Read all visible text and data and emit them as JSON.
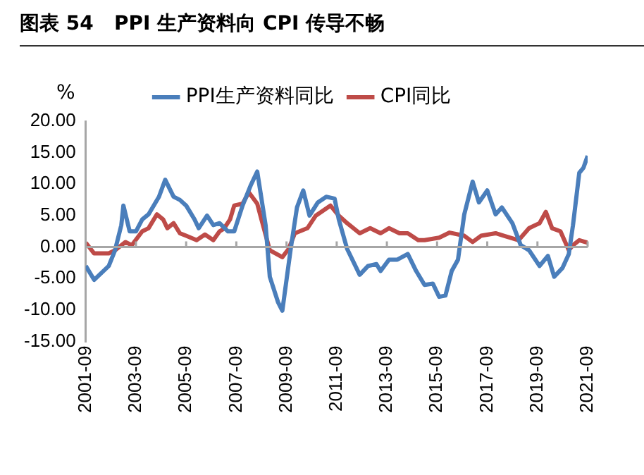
{
  "chart_data": {
    "type": "line",
    "title": "图表 54   PPI 生产资料向 CPI 传导不畅",
    "ylabel": "%",
    "xlim": [
      "2001-09",
      "2021-09"
    ],
    "xticks": [
      "2001-09",
      "2003-09",
      "2005-09",
      "2007-09",
      "2009-09",
      "2011-09",
      "2013-09",
      "2015-09",
      "2017-09",
      "2019-09",
      "2021-09"
    ],
    "ylim": [
      -15,
      20
    ],
    "yticks": [
      {
        "value": -15,
        "label": "-15.00"
      },
      {
        "value": -10,
        "label": "-10.00"
      },
      {
        "value": -5,
        "label": "-5.00"
      },
      {
        "value": 0,
        "label": "0.00"
      },
      {
        "value": 5,
        "label": "5.00"
      },
      {
        "value": 10,
        "label": "10.00"
      },
      {
        "value": 15,
        "label": "15.00"
      },
      {
        "value": 20,
        "label": "20.00"
      }
    ],
    "ref_lines": [
      {
        "axis": "y",
        "value": 0,
        "color": "#a6a6a6"
      }
    ],
    "grid": false,
    "legend": "top",
    "marker": "none",
    "line_style": "solid",
    "series": [
      {
        "name": "PPI生产资料同比",
        "color": "#4a7ebb",
        "x": [
          "2001-09",
          "2002-01",
          "2002-08",
          "2002-11",
          "2003-02",
          "2003-03",
          "2003-06",
          "2003-09",
          "2003-12",
          "2004-03",
          "2004-08",
          "2004-11",
          "2005-03",
          "2005-06",
          "2005-09",
          "2006-01",
          "2006-03",
          "2006-07",
          "2006-10",
          "2007-01",
          "2007-05",
          "2007-08",
          "2007-12",
          "2008-04",
          "2008-07",
          "2008-11",
          "2009-01",
          "2009-05",
          "2009-07",
          "2009-11",
          "2010-02",
          "2010-05",
          "2010-08",
          "2010-12",
          "2011-04",
          "2011-08",
          "2011-10",
          "2012-02",
          "2012-08",
          "2012-12",
          "2013-04",
          "2013-06",
          "2013-10",
          "2014-02",
          "2014-07",
          "2014-11",
          "2015-03",
          "2015-07",
          "2015-10",
          "2016-01",
          "2016-04",
          "2016-07",
          "2016-10",
          "2017-02",
          "2017-05",
          "2017-09",
          "2018-01",
          "2018-04",
          "2018-09",
          "2019-01",
          "2019-05",
          "2019-10",
          "2020-02",
          "2020-05",
          "2020-09",
          "2020-12",
          "2021-02",
          "2021-05",
          "2021-07",
          "2021-09"
        ],
        "values": [
          -3,
          -5.2,
          -3,
          -0.5,
          3.5,
          6.6,
          2.5,
          2.5,
          4.4,
          5.2,
          8,
          10.7,
          8,
          7.5,
          6.6,
          4.4,
          3,
          5,
          3.5,
          3.8,
          2.5,
          2.5,
          6.6,
          9.9,
          12,
          3.5,
          -4.7,
          -8.8,
          -10.1,
          -0.3,
          6.3,
          9,
          5,
          7.1,
          8,
          7.7,
          4.4,
          -0.3,
          -4.4,
          -3,
          -2.7,
          -3.8,
          -2,
          -2,
          -1.1,
          -3.8,
          -6,
          -5.8,
          -7.9,
          -7.7,
          -3.8,
          -2,
          5.2,
          10.4,
          7.1,
          9,
          5.2,
          6.3,
          3.8,
          0.3,
          -0.5,
          -3,
          -1.4,
          -4.7,
          -3.3,
          -1.1,
          3.5,
          11.8,
          12.6,
          14.5
        ]
      },
      {
        "name": "CPI同比",
        "color": "#be4b48",
        "x": [
          "2001-09",
          "2002-01",
          "2002-08",
          "2002-11",
          "2003-04",
          "2003-07",
          "2003-12",
          "2004-03",
          "2004-07",
          "2004-10",
          "2004-12",
          "2005-03",
          "2005-06",
          "2005-09",
          "2006-02",
          "2006-06",
          "2006-10",
          "2007-01",
          "2007-03",
          "2007-06",
          "2007-08",
          "2007-12",
          "2008-03",
          "2008-07",
          "2008-09",
          "2009-01",
          "2009-07",
          "2009-10",
          "2010-01",
          "2010-07",
          "2010-11",
          "2011-06",
          "2011-10",
          "2012-02",
          "2012-08",
          "2013-01",
          "2013-06",
          "2013-10",
          "2014-03",
          "2014-07",
          "2014-12",
          "2015-03",
          "2015-10",
          "2016-03",
          "2016-10",
          "2017-02",
          "2017-06",
          "2018-01",
          "2018-05",
          "2018-12",
          "2019-05",
          "2019-10",
          "2020-01",
          "2020-04",
          "2020-08",
          "2020-12",
          "2021-02",
          "2021-05",
          "2021-09"
        ],
        "values": [
          0.7,
          -1,
          -1,
          -0.5,
          0.8,
          0.3,
          2.5,
          3,
          5.2,
          4.4,
          3,
          3.8,
          2.2,
          1.8,
          1.1,
          2,
          1.1,
          2.5,
          2.9,
          4.4,
          6.6,
          6.9,
          8.7,
          6.9,
          4.4,
          -0.5,
          -1.6,
          -0.3,
          2.2,
          3,
          5,
          6.6,
          5,
          3.8,
          2.2,
          3,
          2.2,
          3,
          2.2,
          2.2,
          1.1,
          1.1,
          1.5,
          2.3,
          1.8,
          0.8,
          1.8,
          2.2,
          1.8,
          1.1,
          3,
          3.8,
          5.6,
          3,
          2.5,
          -0.5,
          0.3,
          1.1,
          0.7
        ]
      }
    ]
  }
}
